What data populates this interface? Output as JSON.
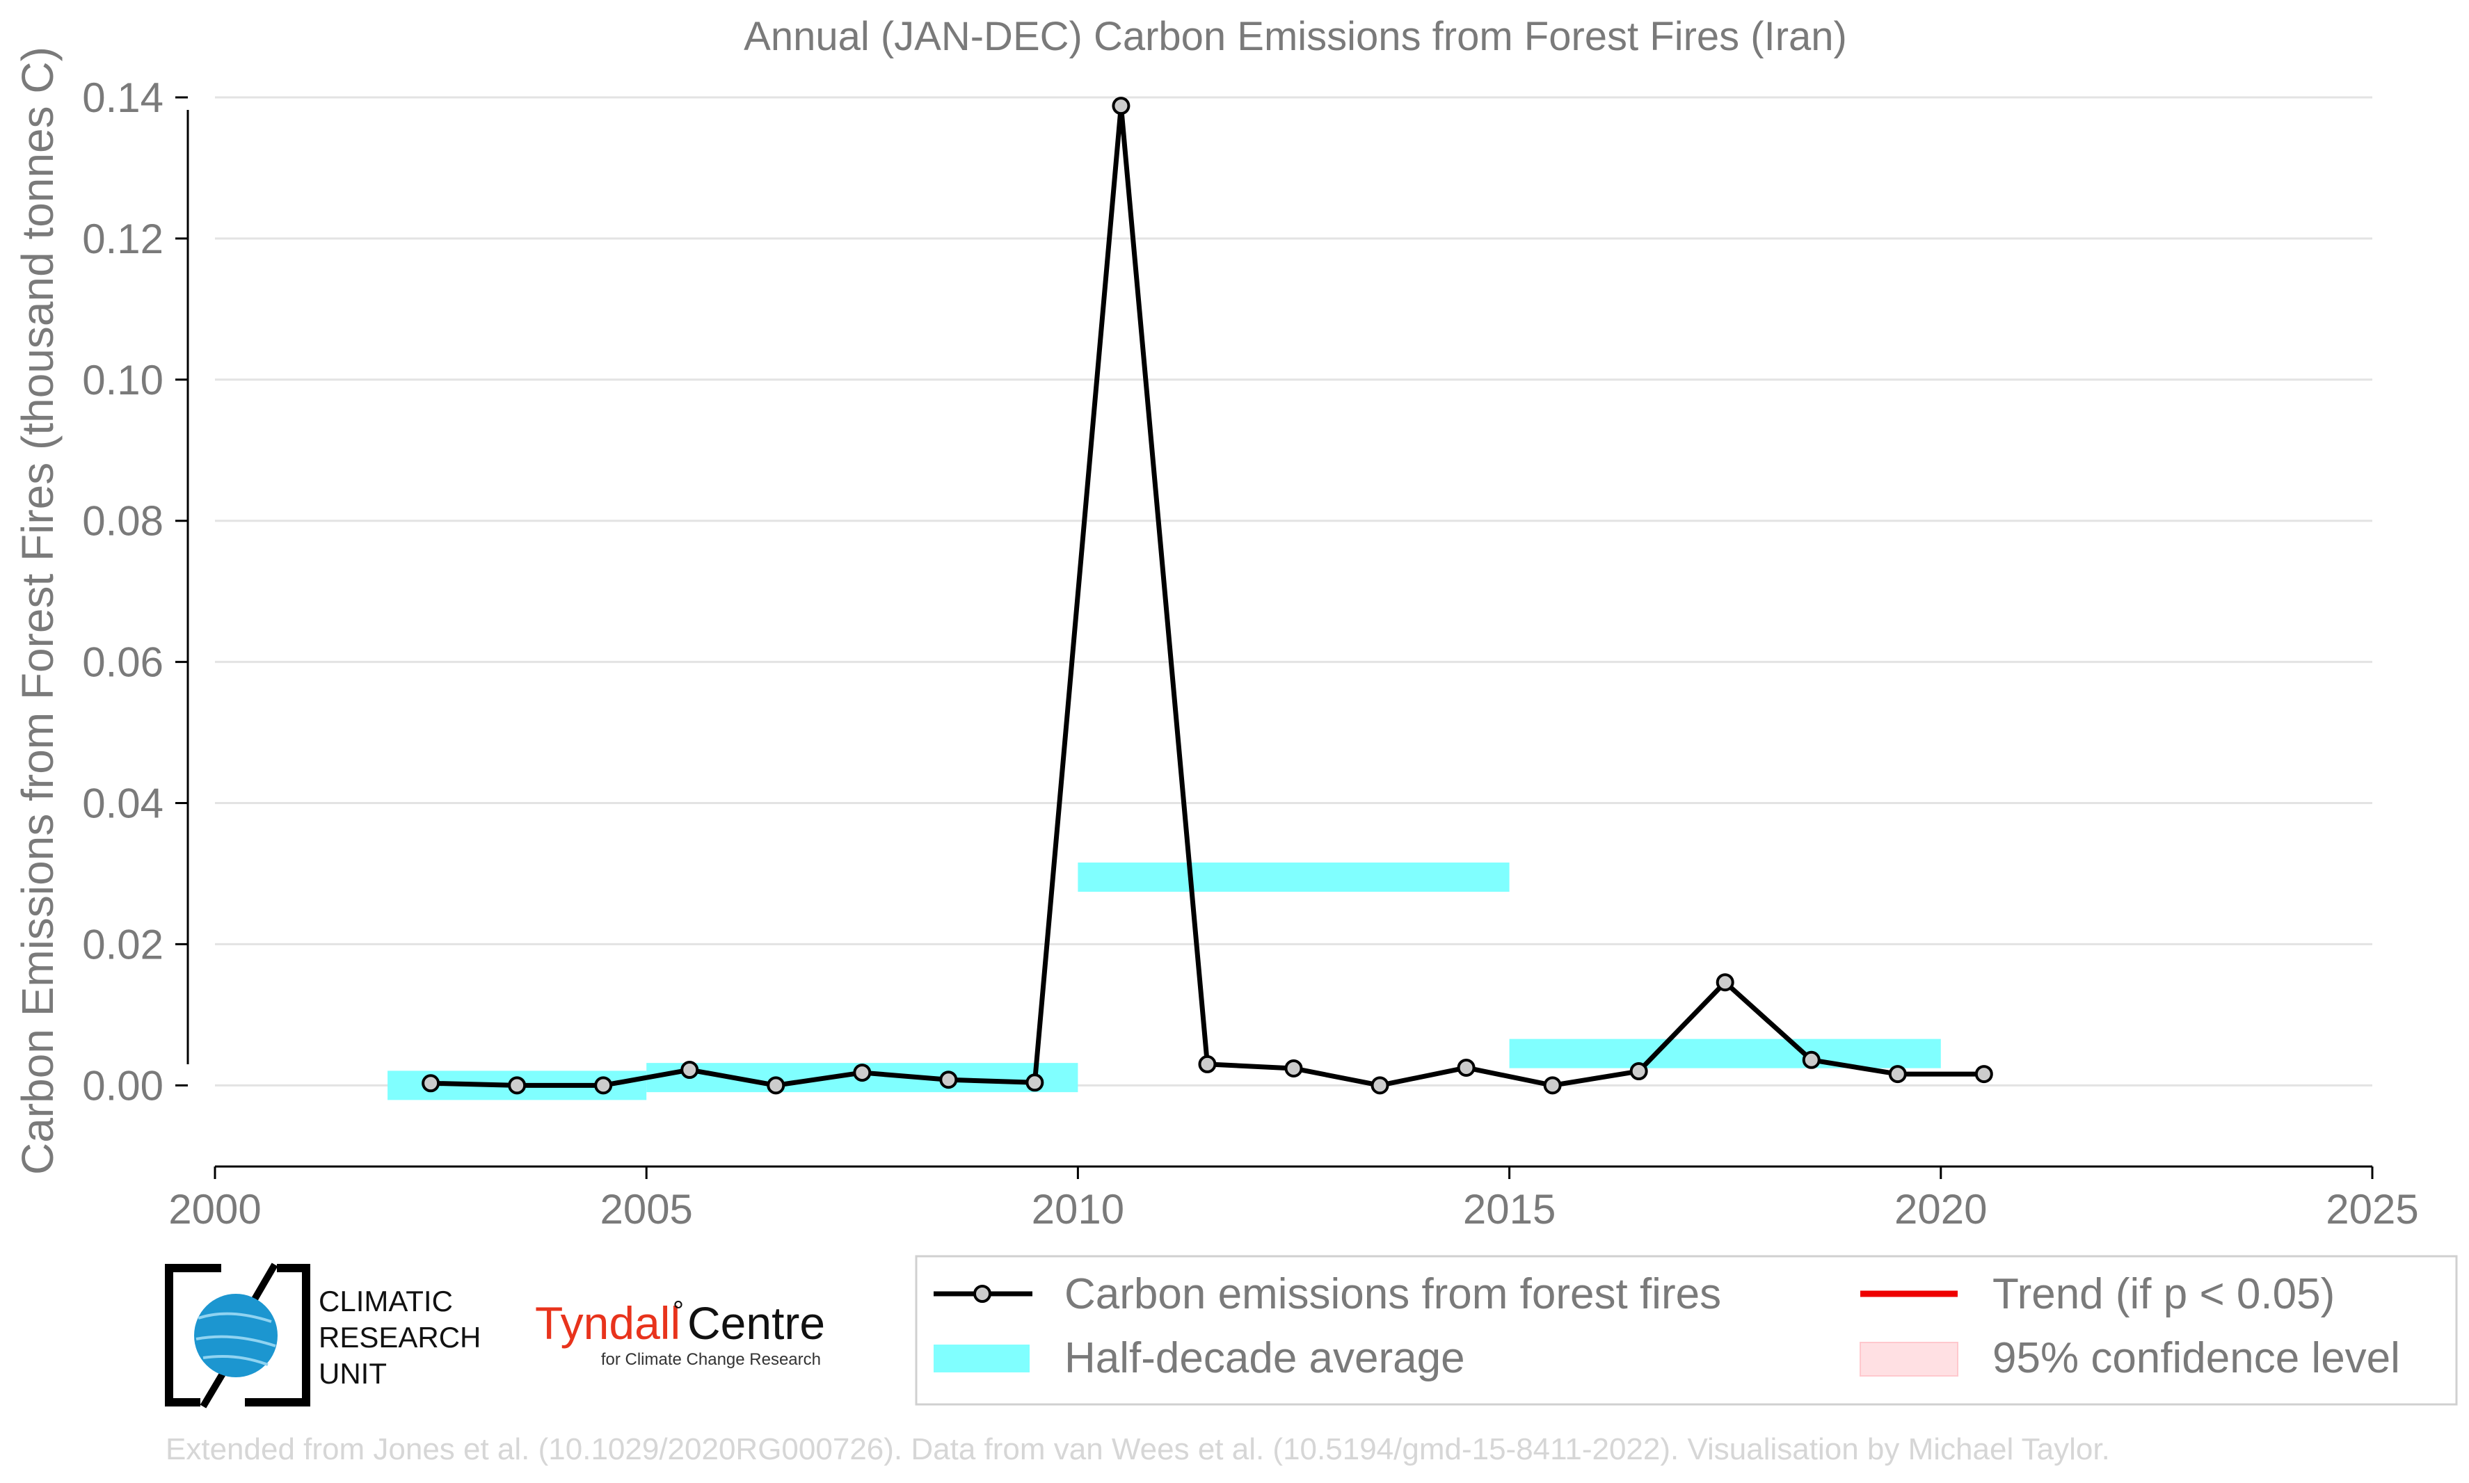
{
  "chart_data": {
    "type": "line",
    "title": "Annual (JAN-DEC) Carbon Emissions from Forest Fires (Iran)",
    "xlabel": "",
    "ylabel": "Carbon Emissions from Forest Fires (thousand tonnes C)",
    "xlim": [
      2000,
      2025
    ],
    "ylim": [
      -0.0115,
      0.14
    ],
    "x_ticks": [
      "2000",
      "2005",
      "2010",
      "2015",
      "2020",
      "2025"
    ],
    "y_ticks": [
      "0.00",
      "0.02",
      "0.04",
      "0.06",
      "0.08",
      "0.10",
      "0.12",
      "0.14"
    ],
    "x_tick_values": [
      2000,
      2005,
      2010,
      2015,
      2020,
      2025
    ],
    "y_tick_values": [
      0,
      0.02,
      0.04,
      0.06,
      0.08,
      0.1,
      0.12,
      0.14
    ],
    "grid": "horizontal",
    "legend_position": "bottom-right",
    "series": [
      {
        "name": "Carbon emissions from forest fires",
        "color": "#000000",
        "marker_color": "#cccccc",
        "x": [
          2002.5,
          2003.5,
          2004.5,
          2005.5,
          2006.5,
          2007.5,
          2008.5,
          2009.5,
          2010.5,
          2011.5,
          2012.5,
          2013.5,
          2014.5,
          2015.5,
          2016.5,
          2017.5,
          2018.5,
          2019.5,
          2020.5
        ],
        "y": [
          0.0003,
          0.0,
          0.0,
          0.0022,
          0.0,
          0.0018,
          0.0008,
          0.0004,
          0.1388,
          0.003,
          0.0024,
          0.0,
          0.0025,
          0.0,
          0.002,
          0.0146,
          0.0036,
          0.0016,
          0.0016
        ]
      },
      {
        "name": "Half-decade average",
        "color": "#80ffff",
        "type": "segments",
        "segments": [
          {
            "x0": 2002,
            "x1": 2005,
            "y": 0.0
          },
          {
            "x0": 2005,
            "x1": 2010,
            "y": 0.0011
          },
          {
            "x0": 2010,
            "x1": 2015,
            "y": 0.0295
          },
          {
            "x0": 2015,
            "x1": 2020,
            "y": 0.0045
          }
        ]
      }
    ],
    "legend": [
      {
        "label": "Carbon emissions from forest fires",
        "kind": "line-marker",
        "color": "#000000"
      },
      {
        "label": "Half-decade average",
        "kind": "band",
        "color": "#80ffff"
      },
      {
        "label": "Trend (if p < 0.05)",
        "kind": "line",
        "color": "#ee0000"
      },
      {
        "label": "95% confidence level",
        "kind": "patch",
        "color": "#ffe0e3"
      }
    ]
  },
  "logos": {
    "cru": [
      "CLIMATIC",
      "RESEARCH",
      "UNIT"
    ],
    "tyndall_main": "Tyndall",
    "tyndall_degree": "°",
    "tyndall_centre": "Centre",
    "tyndall_sub": "for Climate Change Research"
  },
  "credit": "Extended from Jones et al. (10.1029/2020RG000726). Data from van Wees et al. (10.5194/gmd-15-8411-2022). Visualisation by Michael Taylor."
}
